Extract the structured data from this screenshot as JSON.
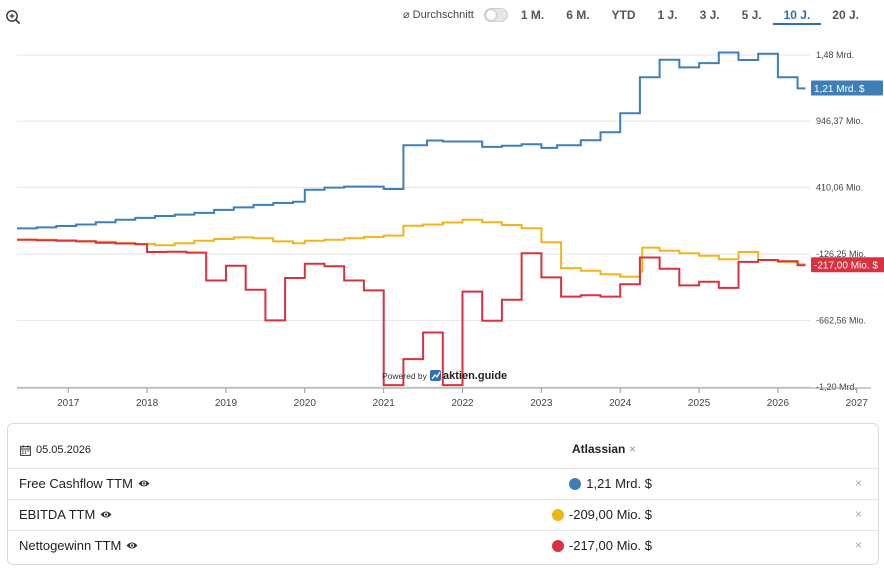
{
  "toolbar": {
    "avg_label": "⌀ Durchschnitt",
    "ranges": [
      "1 M.",
      "6 M.",
      "YTD",
      "1 J.",
      "3 J.",
      "5 J.",
      "10 J.",
      "20 J."
    ],
    "active_range": "10 J."
  },
  "chart_data": {
    "type": "line",
    "x_ticks": [
      "2017",
      "2018",
      "2019",
      "2020",
      "2021",
      "2022",
      "2023",
      "2024",
      "2025",
      "2026",
      "2027"
    ],
    "y_ticks": [
      {
        "value": 1480,
        "label": "1,48 Mrd."
      },
      {
        "value": 946.37,
        "label": "946,37 Mio."
      },
      {
        "value": 410.06,
        "label": "410,06 Mio."
      },
      {
        "value": -126.25,
        "label": "-126,25 Mio."
      },
      {
        "value": -662.56,
        "label": "-662,56 Mio."
      },
      {
        "value": -1200,
        "label": "-1,20 Mrd."
      }
    ],
    "ylim": [
      -1200,
      1480
    ],
    "xlim": [
      2016.35,
      2027.0
    ],
    "watermark": {
      "prefix": "Powered by",
      "brand": "aktien.guide"
    },
    "series": [
      {
        "name": "Free Cashflow TTM",
        "color": "#3f7fb8",
        "end_label": "1,21 Mrd. $",
        "points": [
          [
            2016.35,
            80
          ],
          [
            2016.6,
            80
          ],
          [
            2016.6,
            88
          ],
          [
            2016.85,
            88
          ],
          [
            2016.85,
            100
          ],
          [
            2017.1,
            100
          ],
          [
            2017.1,
            112
          ],
          [
            2017.35,
            112
          ],
          [
            2017.35,
            130
          ],
          [
            2017.6,
            130
          ],
          [
            2017.6,
            150
          ],
          [
            2017.85,
            150
          ],
          [
            2017.85,
            165
          ],
          [
            2018.1,
            165
          ],
          [
            2018.1,
            180
          ],
          [
            2018.35,
            180
          ],
          [
            2018.35,
            192
          ],
          [
            2018.6,
            192
          ],
          [
            2018.6,
            205
          ],
          [
            2018.85,
            205
          ],
          [
            2018.85,
            230
          ],
          [
            2019.1,
            230
          ],
          [
            2019.1,
            250
          ],
          [
            2019.35,
            250
          ],
          [
            2019.35,
            270
          ],
          [
            2019.6,
            270
          ],
          [
            2019.6,
            285
          ],
          [
            2019.85,
            285
          ],
          [
            2019.85,
            295
          ],
          [
            2020.0,
            295
          ],
          [
            2020.0,
            392
          ],
          [
            2020.25,
            392
          ],
          [
            2020.25,
            410
          ],
          [
            2020.5,
            410
          ],
          [
            2020.5,
            418
          ],
          [
            2021.0,
            418
          ],
          [
            2021.0,
            398
          ],
          [
            2021.25,
            398
          ],
          [
            2021.25,
            752
          ],
          [
            2021.55,
            752
          ],
          [
            2021.55,
            790
          ],
          [
            2021.75,
            790
          ],
          [
            2021.75,
            782
          ],
          [
            2022.25,
            782
          ],
          [
            2022.25,
            738
          ],
          [
            2022.5,
            738
          ],
          [
            2022.5,
            748
          ],
          [
            2022.75,
            748
          ],
          [
            2022.75,
            760
          ],
          [
            2023.0,
            760
          ],
          [
            2023.0,
            730
          ],
          [
            2023.2,
            730
          ],
          [
            2023.2,
            752
          ],
          [
            2023.5,
            752
          ],
          [
            2023.5,
            792
          ],
          [
            2023.75,
            792
          ],
          [
            2023.75,
            856
          ],
          [
            2024.0,
            856
          ],
          [
            2024.0,
            1010
          ],
          [
            2024.25,
            1010
          ],
          [
            2024.25,
            1300
          ],
          [
            2024.5,
            1300
          ],
          [
            2024.5,
            1442
          ],
          [
            2024.75,
            1442
          ],
          [
            2024.75,
            1380
          ],
          [
            2025.0,
            1380
          ],
          [
            2025.0,
            1415
          ],
          [
            2025.25,
            1415
          ],
          [
            2025.25,
            1500
          ],
          [
            2025.5,
            1500
          ],
          [
            2025.5,
            1440
          ],
          [
            2025.75,
            1440
          ],
          [
            2025.75,
            1490
          ],
          [
            2026.0,
            1490
          ],
          [
            2026.0,
            1300
          ],
          [
            2026.25,
            1300
          ],
          [
            2026.25,
            1210
          ],
          [
            2026.35,
            1210
          ]
        ]
      },
      {
        "name": "EBITDA TTM",
        "color": "#f0b51a",
        "end_label": "",
        "points": [
          [
            2016.35,
            -10
          ],
          [
            2016.6,
            -10
          ],
          [
            2016.6,
            -12
          ],
          [
            2016.85,
            -12
          ],
          [
            2016.85,
            -16
          ],
          [
            2017.1,
            -16
          ],
          [
            2017.1,
            -22
          ],
          [
            2017.35,
            -22
          ],
          [
            2017.35,
            -28
          ],
          [
            2017.6,
            -28
          ],
          [
            2017.6,
            -38
          ],
          [
            2017.85,
            -38
          ],
          [
            2017.85,
            -45
          ],
          [
            2018.1,
            -45
          ],
          [
            2018.1,
            -55
          ],
          [
            2018.35,
            -55
          ],
          [
            2018.35,
            -40
          ],
          [
            2018.6,
            -40
          ],
          [
            2018.6,
            -20
          ],
          [
            2018.85,
            -20
          ],
          [
            2018.85,
            -5
          ],
          [
            2019.1,
            -5
          ],
          [
            2019.1,
            8
          ],
          [
            2019.35,
            8
          ],
          [
            2019.35,
            0
          ],
          [
            2019.6,
            0
          ],
          [
            2019.6,
            -25
          ],
          [
            2019.85,
            -25
          ],
          [
            2019.85,
            -40
          ],
          [
            2020.0,
            -40
          ],
          [
            2020.0,
            -20
          ],
          [
            2020.25,
            -20
          ],
          [
            2020.25,
            -12
          ],
          [
            2020.5,
            -12
          ],
          [
            2020.5,
            0
          ],
          [
            2020.75,
            0
          ],
          [
            2020.75,
            12
          ],
          [
            2021.0,
            12
          ],
          [
            2021.0,
            22
          ],
          [
            2021.25,
            22
          ],
          [
            2021.25,
            102
          ],
          [
            2021.5,
            102
          ],
          [
            2021.5,
            112
          ],
          [
            2021.75,
            112
          ],
          [
            2021.75,
            128
          ],
          [
            2022.0,
            128
          ],
          [
            2022.0,
            150
          ],
          [
            2022.25,
            150
          ],
          [
            2022.25,
            130
          ],
          [
            2022.5,
            130
          ],
          [
            2022.5,
            108
          ],
          [
            2022.75,
            108
          ],
          [
            2022.75,
            82
          ],
          [
            2023.0,
            82
          ],
          [
            2023.0,
            -32
          ],
          [
            2023.25,
            -32
          ],
          [
            2023.25,
            -240
          ],
          [
            2023.5,
            -240
          ],
          [
            2023.5,
            -262
          ],
          [
            2023.75,
            -262
          ],
          [
            2023.75,
            -290
          ],
          [
            2024.0,
            -290
          ],
          [
            2024.0,
            -310
          ],
          [
            2024.25,
            -310
          ],
          [
            2024.25,
            -268
          ],
          [
            2024.25,
            -268
          ],
          [
            2024.28,
            -268
          ],
          [
            2024.28,
            -75
          ],
          [
            2024.5,
            -75
          ],
          [
            2024.5,
            -100
          ],
          [
            2024.75,
            -100
          ],
          [
            2024.75,
            -120
          ],
          [
            2025.0,
            -120
          ],
          [
            2025.0,
            -140
          ],
          [
            2025.25,
            -140
          ],
          [
            2025.25,
            -168
          ],
          [
            2025.5,
            -168
          ],
          [
            2025.5,
            -110
          ],
          [
            2025.75,
            -110
          ],
          [
            2025.75,
            -175
          ],
          [
            2026.0,
            -175
          ],
          [
            2026.0,
            -190
          ],
          [
            2026.25,
            -190
          ],
          [
            2026.25,
            -209
          ],
          [
            2026.35,
            -209
          ]
        ]
      },
      {
        "name": "Nettogewinn TTM",
        "color": "#d9313f",
        "end_label": "-217,00 Mio. $",
        "points": [
          [
            2016.35,
            -12
          ],
          [
            2016.6,
            -12
          ],
          [
            2016.6,
            -15
          ],
          [
            2016.85,
            -15
          ],
          [
            2016.85,
            -20
          ],
          [
            2017.1,
            -20
          ],
          [
            2017.1,
            -25
          ],
          [
            2017.35,
            -25
          ],
          [
            2017.35,
            -35
          ],
          [
            2017.6,
            -35
          ],
          [
            2017.6,
            -42
          ],
          [
            2017.85,
            -42
          ],
          [
            2017.85,
            -48
          ],
          [
            2018.0,
            -48
          ],
          [
            2018.0,
            -110
          ],
          [
            2018.25,
            -110
          ],
          [
            2018.25,
            -108
          ],
          [
            2018.5,
            -108
          ],
          [
            2018.5,
            -115
          ],
          [
            2018.75,
            -115
          ],
          [
            2018.75,
            -340
          ],
          [
            2019.0,
            -340
          ],
          [
            2019.0,
            -222
          ],
          [
            2019.25,
            -222
          ],
          [
            2019.25,
            -415
          ],
          [
            2019.5,
            -415
          ],
          [
            2019.5,
            -662
          ],
          [
            2019.75,
            -662
          ],
          [
            2019.75,
            -320
          ],
          [
            2020.0,
            -320
          ],
          [
            2020.0,
            -205
          ],
          [
            2020.25,
            -205
          ],
          [
            2020.25,
            -225
          ],
          [
            2020.5,
            -225
          ],
          [
            2020.5,
            -340
          ],
          [
            2020.75,
            -340
          ],
          [
            2020.75,
            -420
          ],
          [
            2021.0,
            -420
          ],
          [
            2021.0,
            -1185
          ],
          [
            2021.25,
            -1185
          ],
          [
            2021.25,
            -975
          ],
          [
            2021.5,
            -975
          ],
          [
            2021.5,
            -760
          ],
          [
            2021.75,
            -760
          ],
          [
            2021.75,
            -1185
          ],
          [
            2022.0,
            -1185
          ],
          [
            2022.0,
            -430
          ],
          [
            2022.25,
            -430
          ],
          [
            2022.25,
            -665
          ],
          [
            2022.5,
            -665
          ],
          [
            2022.5,
            -495
          ],
          [
            2022.75,
            -495
          ],
          [
            2022.75,
            -120
          ],
          [
            2023.0,
            -120
          ],
          [
            2023.0,
            -315
          ],
          [
            2023.25,
            -315
          ],
          [
            2023.25,
            -470
          ],
          [
            2023.5,
            -470
          ],
          [
            2023.5,
            -460
          ],
          [
            2023.75,
            -460
          ],
          [
            2023.75,
            -470
          ],
          [
            2024.0,
            -470
          ],
          [
            2024.0,
            -370
          ],
          [
            2024.25,
            -370
          ],
          [
            2024.25,
            -155
          ],
          [
            2024.5,
            -155
          ],
          [
            2024.5,
            -245
          ],
          [
            2024.75,
            -245
          ],
          [
            2024.75,
            -380
          ],
          [
            2025.0,
            -380
          ],
          [
            2025.0,
            -350
          ],
          [
            2025.25,
            -350
          ],
          [
            2025.25,
            -400
          ],
          [
            2025.5,
            -400
          ],
          [
            2025.5,
            -190
          ],
          [
            2025.75,
            -190
          ],
          [
            2025.75,
            -175
          ],
          [
            2026.0,
            -175
          ],
          [
            2026.0,
            -185
          ],
          [
            2026.25,
            -185
          ],
          [
            2026.25,
            -217
          ],
          [
            2026.35,
            -217
          ]
        ]
      }
    ]
  },
  "panel": {
    "date": "05.05.2026",
    "company": "Atlassian",
    "company_close": "×",
    "rows": [
      {
        "label": "Free Cashflow TTM",
        "value": "1,21 Mrd. $",
        "color": "#3f7fb8"
      },
      {
        "label": "EBITDA TTM",
        "value": "-209,00 Mio. $",
        "color": "#f0b51a"
      },
      {
        "label": "Nettogewinn TTM",
        "value": "-217,00 Mio. $",
        "color": "#d9313f"
      }
    ],
    "row_close": "×"
  }
}
